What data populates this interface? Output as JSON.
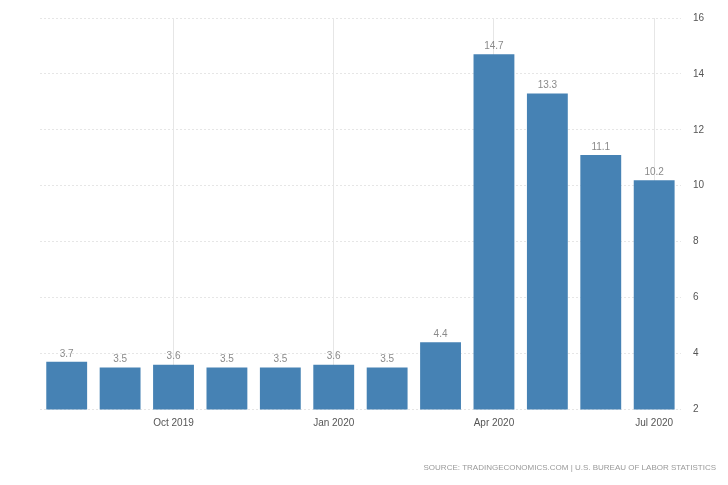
{
  "chart_data": {
    "type": "bar",
    "categories": [
      null,
      null,
      "Oct 2019",
      null,
      null,
      "Jan 2020",
      null,
      null,
      "Apr 2020",
      null,
      null,
      "Jul 2020"
    ],
    "values": [
      3.7,
      3.5,
      3.6,
      3.5,
      3.5,
      3.6,
      3.5,
      4.4,
      14.7,
      13.3,
      11.1,
      10.2
    ],
    "color": "#4682b4",
    "ylim": [
      2,
      16
    ],
    "yticks": [
      2,
      4,
      6,
      8,
      10,
      12,
      14,
      16
    ],
    "grid": true,
    "data_labels": true,
    "source": "SOURCE: TRADINGECONOMICS.COM | U.S. BUREAU OF LABOR STATISTICS"
  }
}
